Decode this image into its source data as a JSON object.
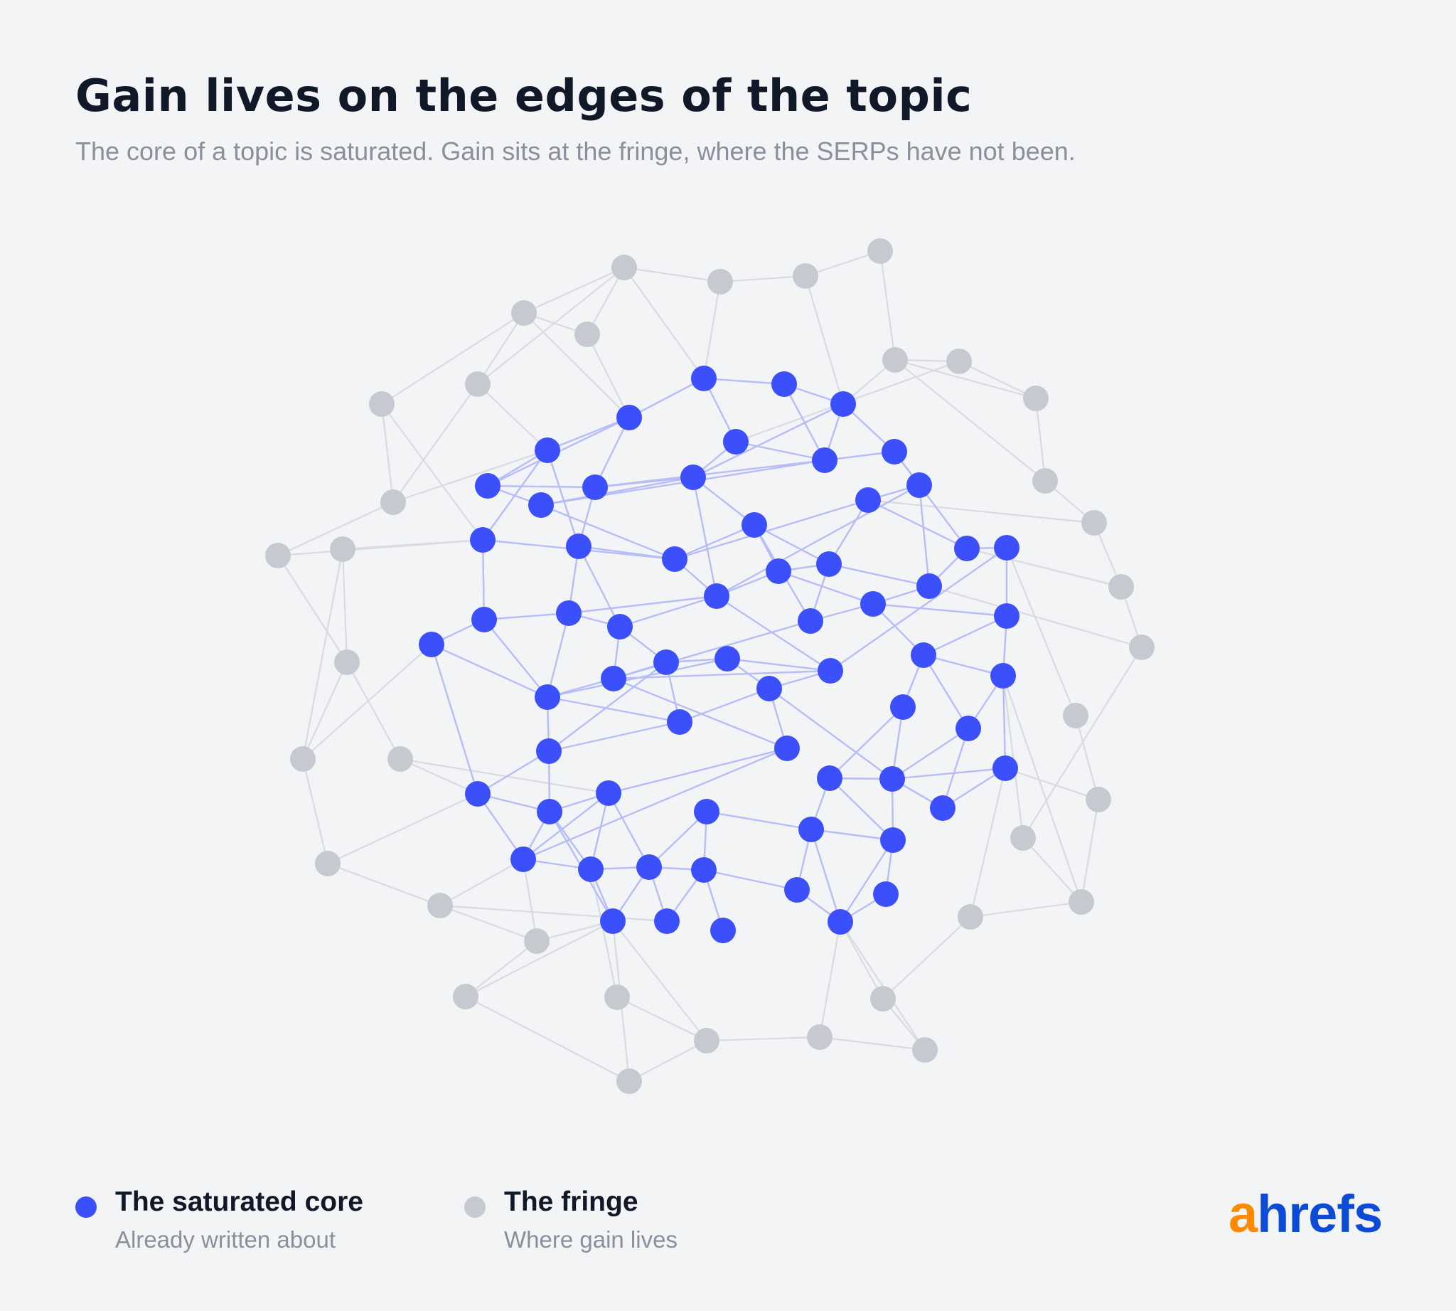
{
  "header": {
    "title": "Gain lives on the edges of the topic",
    "subtitle": "The core of a topic is saturated. Gain sits at the fringe, where the SERPs have not been."
  },
  "legend": [
    {
      "label": "The saturated core",
      "sublabel": "Already written about",
      "color": "#3b50fa"
    },
    {
      "label": "The fringe",
      "sublabel": "Where gain lives",
      "color": "#c5cad1"
    }
  ],
  "logo": {
    "accent_letter": "a",
    "rest": "hrefs",
    "accent_color": "#ff8c00",
    "color": "#0c4bd6"
  },
  "colors": {
    "core": "#3b50fa",
    "fringe": "#c5cad1",
    "core_edge": "#b6bdf7",
    "fringe_edge": "#d8dbe0"
  }
}
